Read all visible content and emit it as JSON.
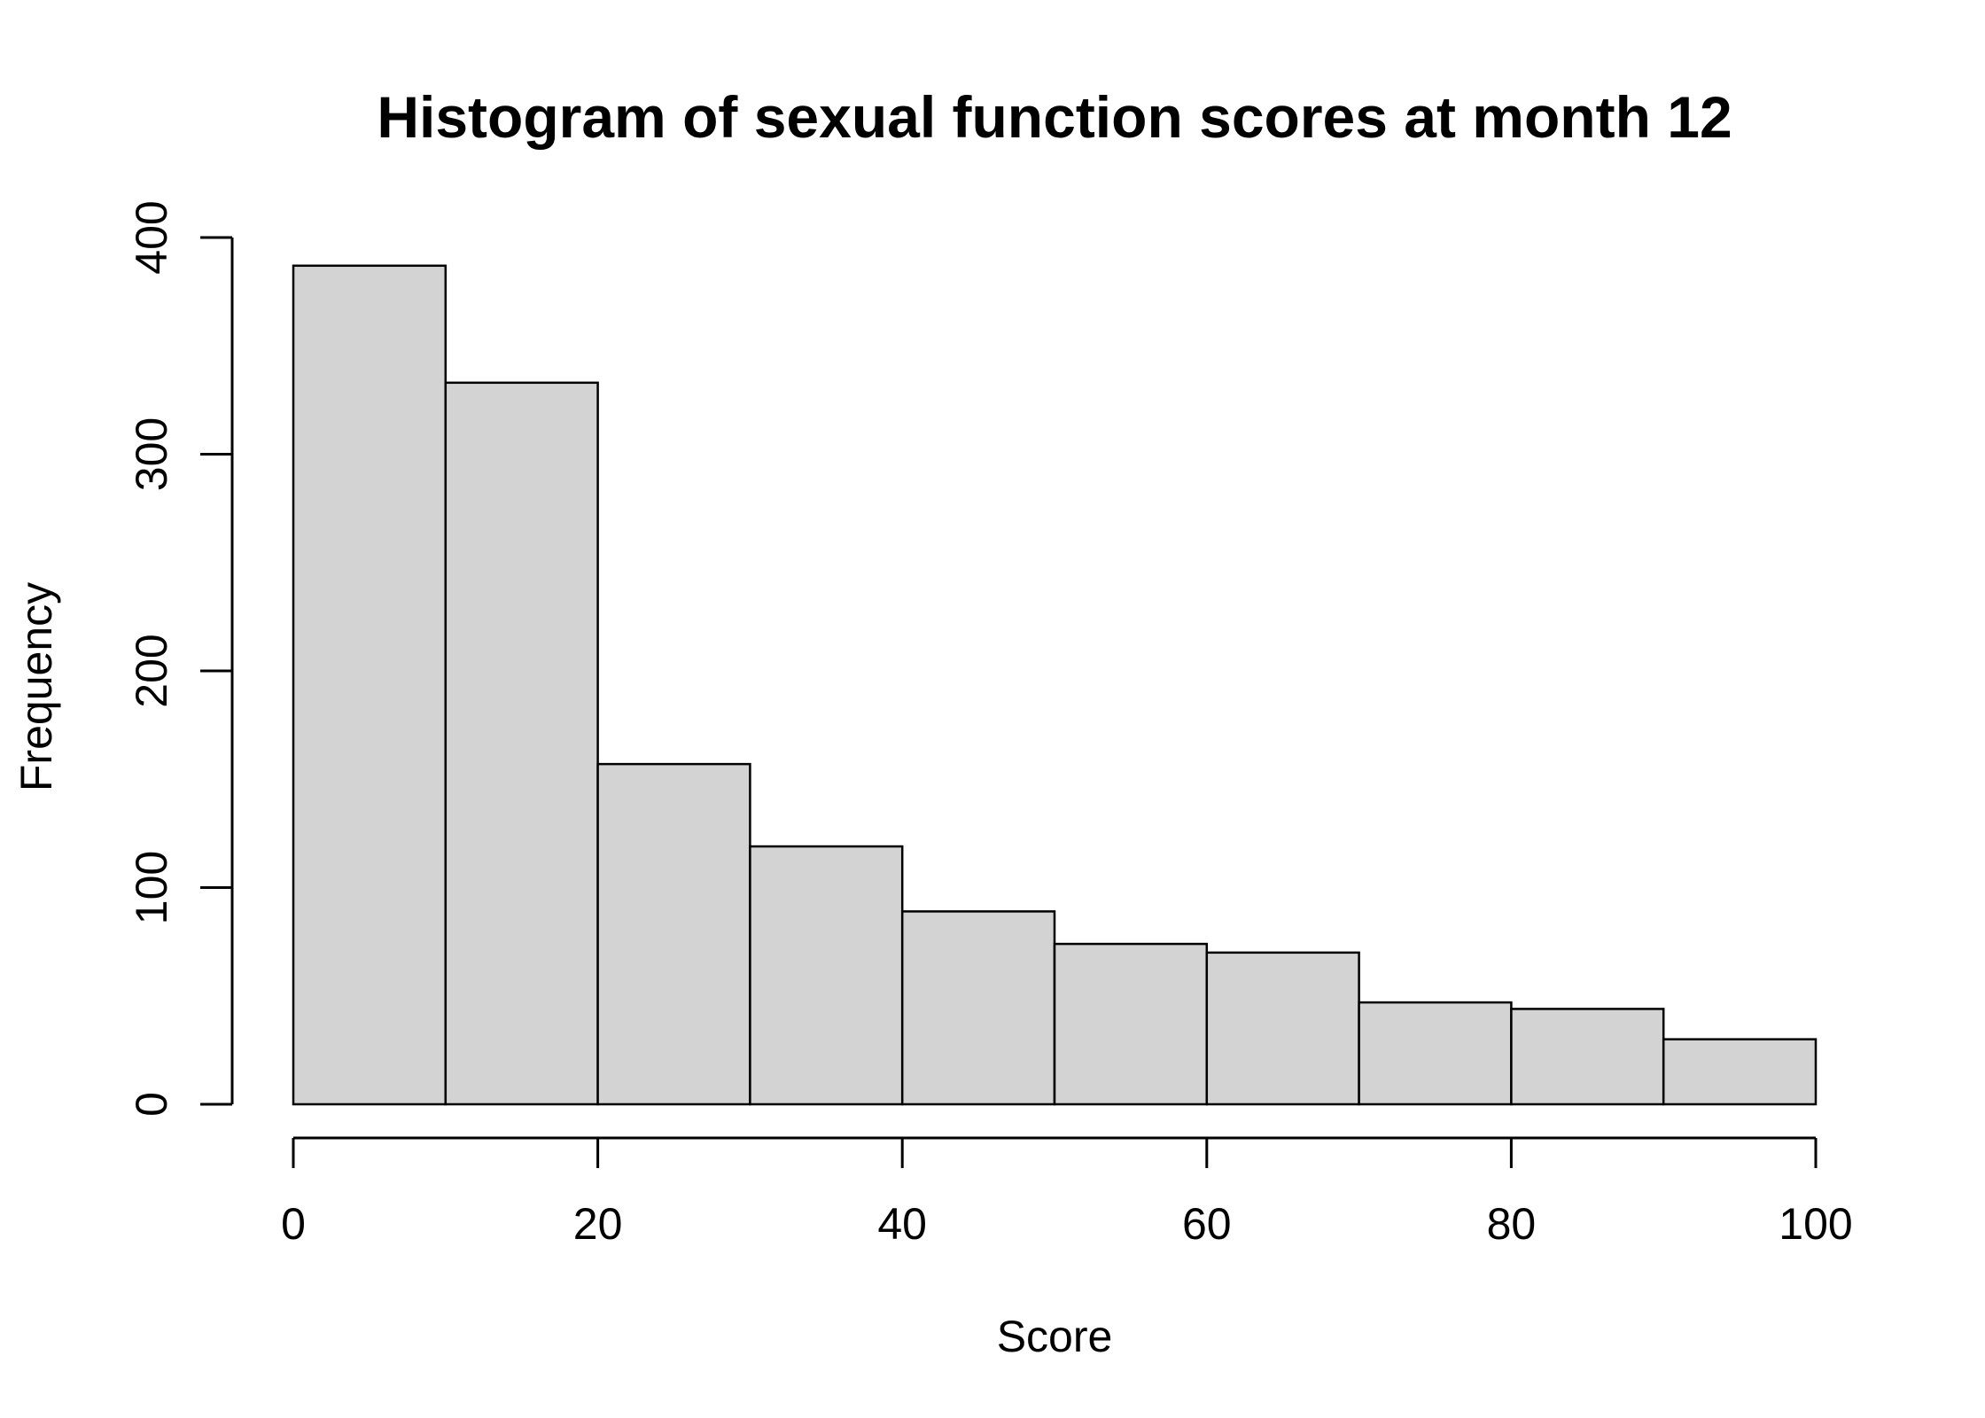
{
  "chart_data": {
    "type": "bar",
    "title": "Histogram of sexual function scores at month 12",
    "xlabel": "Score",
    "ylabel": "Frequency",
    "bins": [
      {
        "from": 0,
        "to": 10,
        "count": 387
      },
      {
        "from": 10,
        "to": 20,
        "count": 333
      },
      {
        "from": 20,
        "to": 30,
        "count": 157
      },
      {
        "from": 30,
        "to": 40,
        "count": 119
      },
      {
        "from": 40,
        "to": 50,
        "count": 89
      },
      {
        "from": 50,
        "to": 60,
        "count": 74
      },
      {
        "from": 60,
        "to": 70,
        "count": 70
      },
      {
        "from": 70,
        "to": 80,
        "count": 47
      },
      {
        "from": 80,
        "to": 90,
        "count": 44
      },
      {
        "from": 90,
        "to": 100,
        "count": 30
      }
    ],
    "xlim": [
      0,
      100
    ],
    "ylim": [
      0,
      400
    ],
    "x_ticks": [
      "0",
      "20",
      "40",
      "60",
      "80",
      "100"
    ],
    "y_ticks": [
      "0",
      "100",
      "200",
      "300",
      "400"
    ],
    "bar_fill": "#d3d3d3",
    "bar_stroke": "#000000",
    "grid": false
  }
}
